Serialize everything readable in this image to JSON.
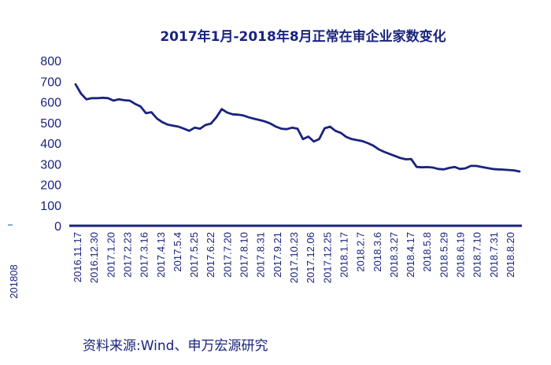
{
  "chart_data": {
    "type": "line",
    "title": "2017年1月-2018年8月正常在审企业家数变化",
    "xlabel": "",
    "ylabel": "",
    "ylim": [
      0,
      800
    ],
    "yticks": [
      0,
      100,
      200,
      300,
      400,
      500,
      600,
      700,
      800
    ],
    "grid": false,
    "legend": "none",
    "line_color": "#1a237e",
    "x_tick_labels": [
      "2016.11.17",
      "2016.12.30",
      "2017.1.20",
      "2017.2.23",
      "2017.3.16",
      "2017.4.13",
      "2017.5.4",
      "2017.5.25",
      "2017.6.22",
      "2017.7.20",
      "2017.8.10",
      "2017.8.31",
      "2017.9.21",
      "2017.10.23",
      "2017.12.06",
      "2017.12.25",
      "2018.1.17",
      "2018.2.7",
      "2018.3.6",
      "2018.3.27",
      "2018.4.17",
      "2018.5.8",
      "2018.5.29",
      "2018.6.19",
      "2018.7.10",
      "2018.7.31",
      "2018.8.20"
    ],
    "series": [
      {
        "values": [
          685,
          640,
          612,
          618,
          618,
          620,
          618,
          606,
          612,
          608,
          606,
          590,
          578,
          545,
          550,
          520,
          502,
          490,
          485,
          480,
          470,
          460,
          475,
          470,
          488,
          495,
          525,
          565,
          548,
          540,
          538,
          534,
          525,
          518,
          512,
          505,
          495,
          480,
          470,
          468,
          475,
          470,
          420,
          432,
          408,
          420,
          472,
          480,
          460,
          450,
          430,
          420,
          415,
          410,
          400,
          388,
          370,
          358,
          348,
          338,
          328,
          322,
          323,
          285,
          283,
          284,
          282,
          275,
          273,
          280,
          285,
          275,
          278,
          290,
          290,
          285,
          280,
          275,
          273,
          272,
          270,
          268,
          263
        ]
      }
    ],
    "side_label": "201808",
    "source": "资料来源:Wind、申万宏源研究"
  }
}
